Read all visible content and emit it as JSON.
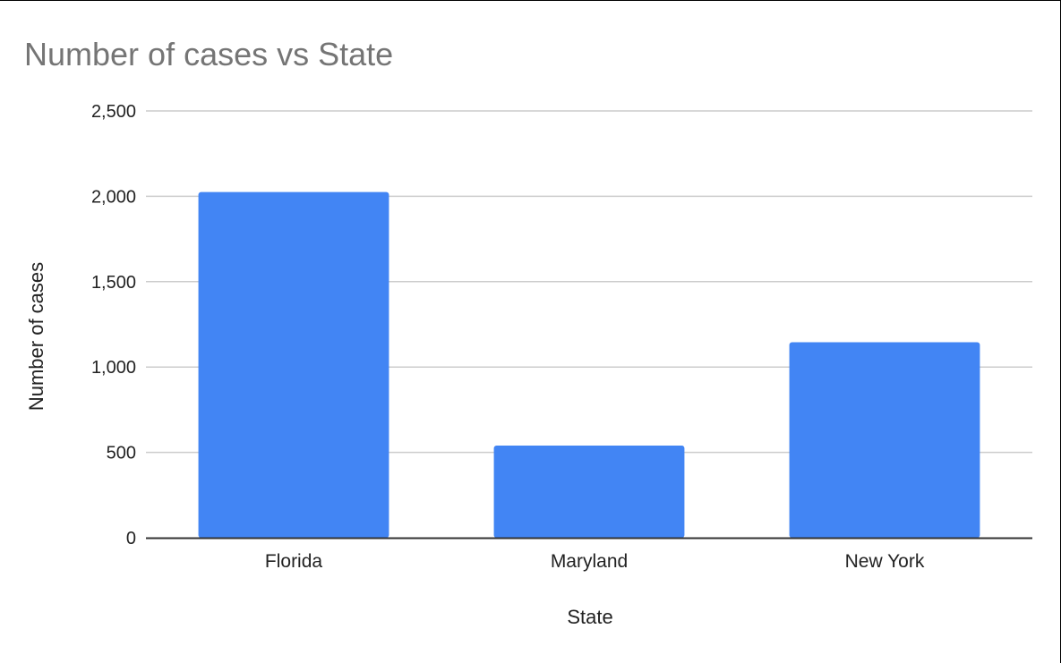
{
  "chart_data": {
    "type": "bar",
    "title": "Number of cases vs State",
    "xlabel": "State",
    "ylabel": "Number of cases",
    "categories": [
      "Florida",
      "Maryland",
      "New York"
    ],
    "values": [
      2025,
      540,
      1145
    ],
    "ylim": [
      0,
      2500
    ],
    "yticks": [
      0,
      500,
      1000,
      1500,
      2000,
      2500
    ],
    "ytick_labels": [
      "0",
      "500",
      "1,000",
      "1,500",
      "2,000",
      "2,500"
    ],
    "grid": true,
    "legend": "none",
    "bar_color": "#4285F4",
    "gridline_color": "#cccccc",
    "axis_color": "#333333",
    "title_color": "#757575"
  }
}
